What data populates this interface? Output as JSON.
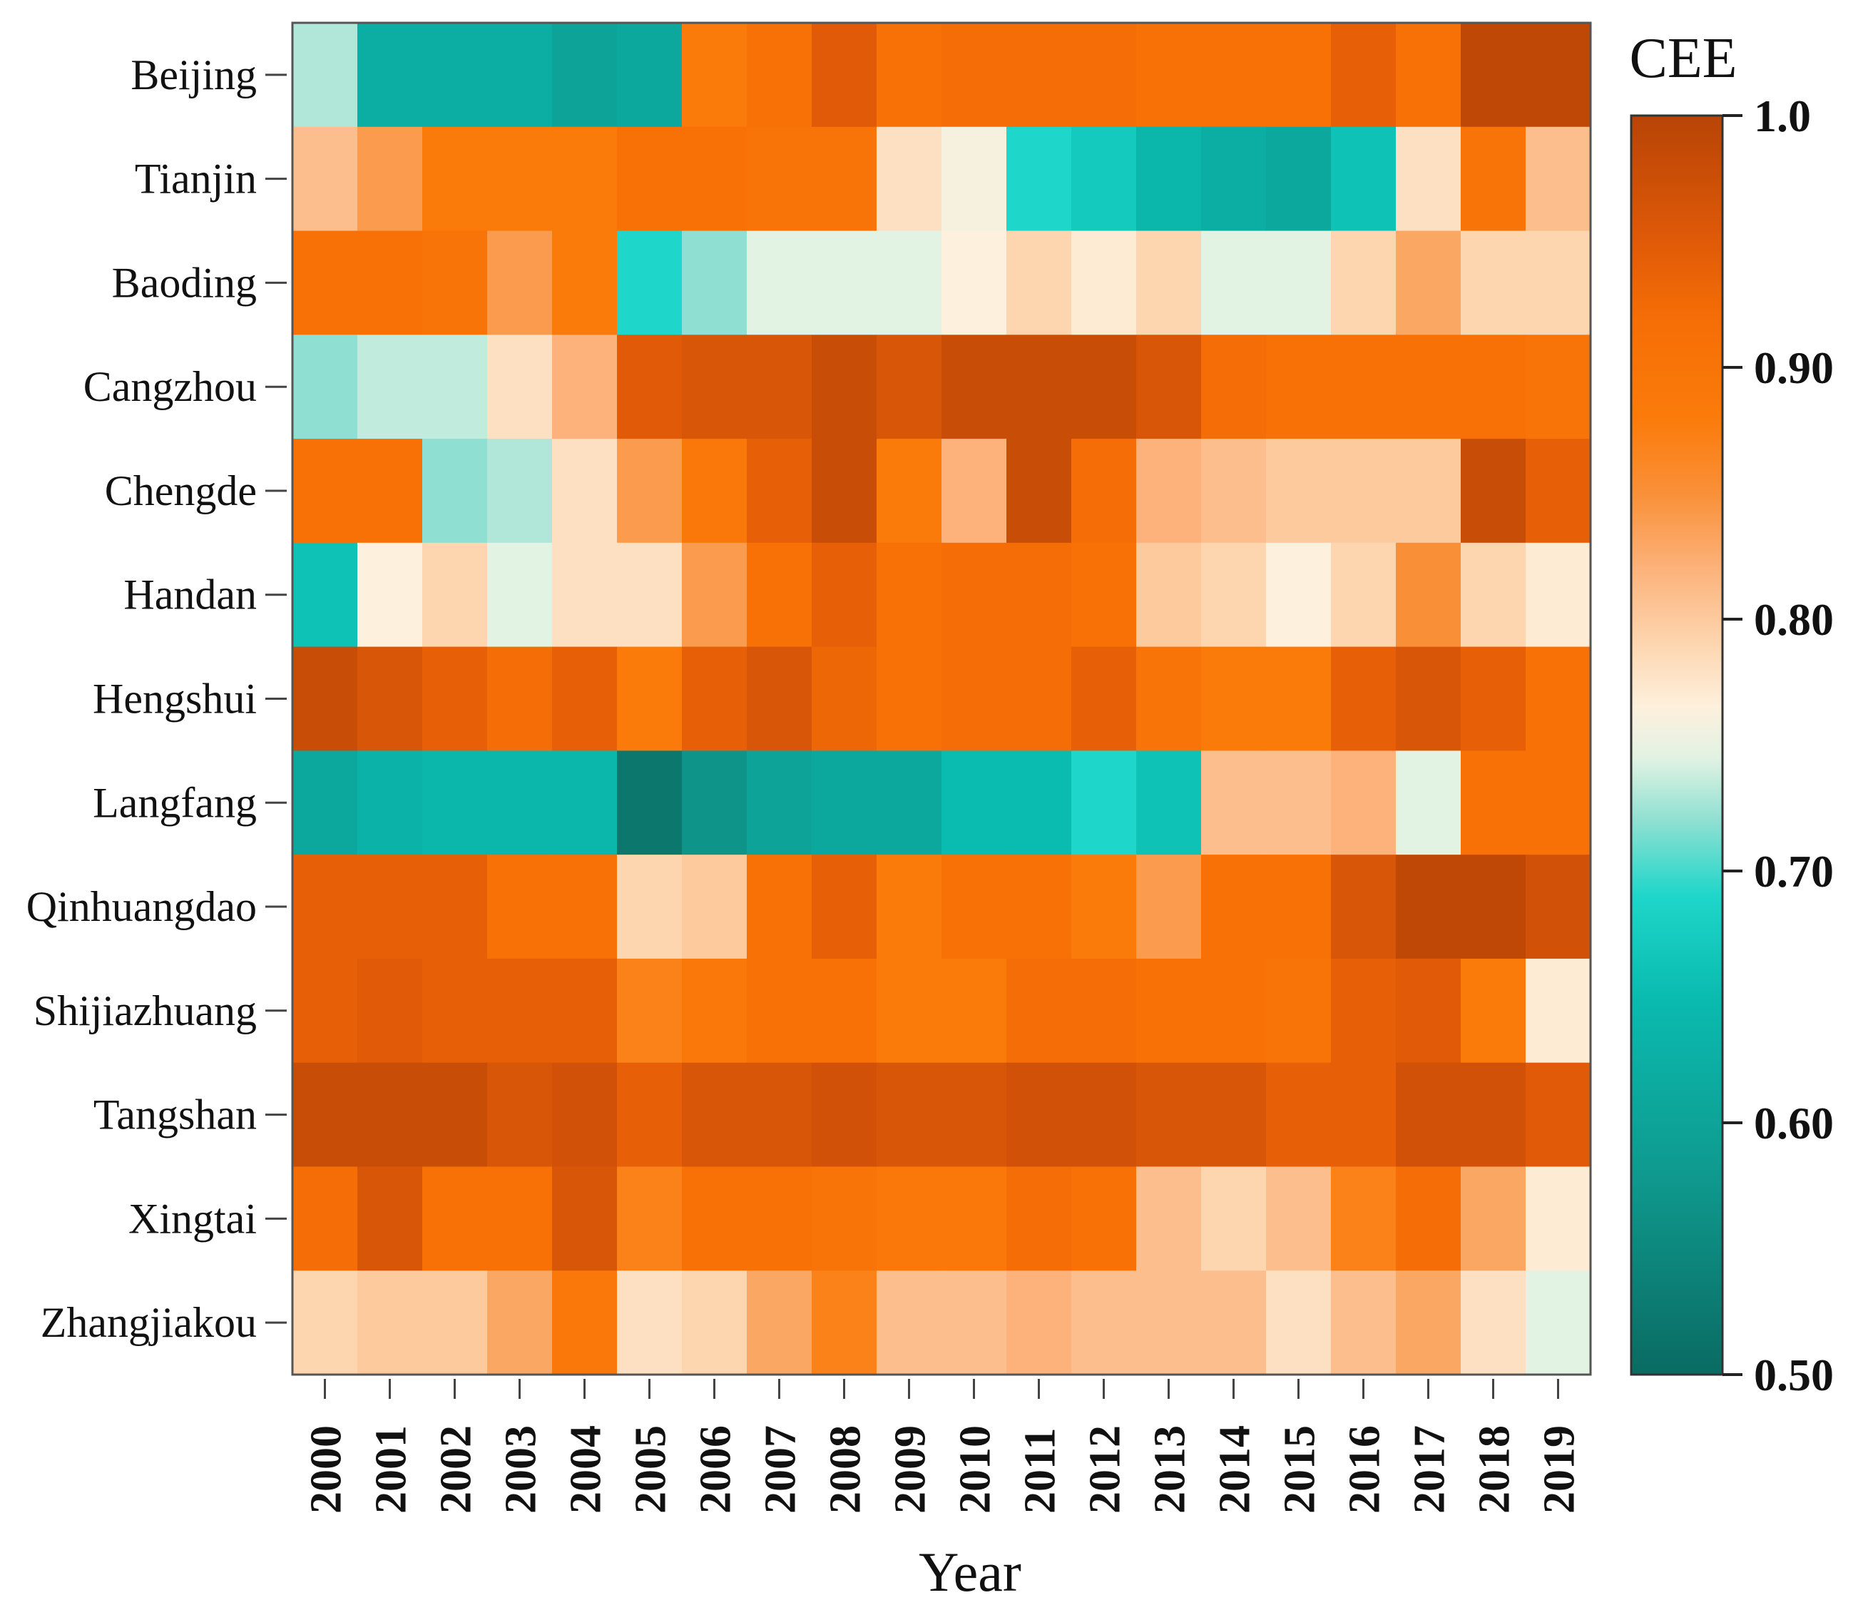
{
  "chart_data": {
    "type": "heatmap",
    "title": "",
    "xlabel": "Year",
    "ylabel": "",
    "legend_title": "CEE",
    "legend_position": "right",
    "grid": false,
    "x_categories": [
      "2000",
      "2001",
      "2002",
      "2003",
      "2004",
      "2005",
      "2006",
      "2007",
      "2008",
      "2009",
      "2010",
      "2011",
      "2012",
      "2013",
      "2014",
      "2015",
      "2016",
      "2017",
      "2018",
      "2019"
    ],
    "y_categories": [
      "Beijing",
      "Tianjin",
      "Baoding",
      "Cangzhou",
      "Chengde",
      "Handan",
      "Hengshui",
      "Langfang",
      "Qinhuangdao",
      "Shijiazhuang",
      "Tangshan",
      "Xingtai",
      "Zhangjiakou"
    ],
    "value_range": [
      0.5,
      1.0
    ],
    "colorbar_ticks": [
      {
        "value": 1.0,
        "label": "1.0"
      },
      {
        "value": 0.9,
        "label": "0.90"
      },
      {
        "value": 0.8,
        "label": "0.80"
      },
      {
        "value": 0.7,
        "label": "0.70"
      },
      {
        "value": 0.6,
        "label": "0.60"
      },
      {
        "value": 0.5,
        "label": "0.50"
      }
    ],
    "colorscale": [
      {
        "value": 0.5,
        "color": "#0a6b62"
      },
      {
        "value": 0.58,
        "color": "#0f9a8f"
      },
      {
        "value": 0.65,
        "color": "#0abbb0"
      },
      {
        "value": 0.69,
        "color": "#1ed6c9"
      },
      {
        "value": 0.72,
        "color": "#8fe0d2"
      },
      {
        "value": 0.745,
        "color": "#e2f2e3"
      },
      {
        "value": 0.765,
        "color": "#fdf0dd"
      },
      {
        "value": 0.79,
        "color": "#fdd6b0"
      },
      {
        "value": 0.82,
        "color": "#fcb27a"
      },
      {
        "value": 0.85,
        "color": "#f99038"
      },
      {
        "value": 0.88,
        "color": "#fb7b0a"
      },
      {
        "value": 0.92,
        "color": "#f56d06"
      },
      {
        "value": 0.95,
        "color": "#e05a08"
      },
      {
        "value": 1.0,
        "color": "#b84406"
      }
    ],
    "values": [
      [
        0.73,
        0.62,
        0.62,
        0.62,
        0.6,
        0.61,
        0.88,
        0.91,
        0.95,
        0.91,
        0.92,
        0.92,
        0.92,
        0.91,
        0.91,
        0.91,
        0.94,
        0.91,
        0.99,
        0.99
      ],
      [
        0.81,
        0.84,
        0.88,
        0.88,
        0.88,
        0.91,
        0.91,
        0.9,
        0.9,
        0.78,
        0.76,
        0.69,
        0.67,
        0.64,
        0.62,
        0.61,
        0.66,
        0.78,
        0.9,
        0.81
      ],
      [
        0.91,
        0.91,
        0.9,
        0.84,
        0.88,
        0.69,
        0.72,
        0.745,
        0.745,
        0.745,
        0.765,
        0.79,
        0.77,
        0.79,
        0.745,
        0.745,
        0.79,
        0.83,
        0.79,
        0.79
      ],
      [
        0.72,
        0.735,
        0.735,
        0.78,
        0.82,
        0.95,
        0.96,
        0.96,
        0.98,
        0.96,
        0.98,
        0.98,
        0.98,
        0.96,
        0.92,
        0.91,
        0.91,
        0.91,
        0.91,
        0.9
      ],
      [
        0.91,
        0.91,
        0.72,
        0.73,
        0.78,
        0.84,
        0.89,
        0.94,
        0.98,
        0.88,
        0.82,
        0.98,
        0.92,
        0.82,
        0.81,
        0.8,
        0.8,
        0.8,
        0.98,
        0.94
      ],
      [
        0.66,
        0.765,
        0.79,
        0.745,
        0.78,
        0.78,
        0.84,
        0.91,
        0.94,
        0.91,
        0.92,
        0.92,
        0.91,
        0.8,
        0.79,
        0.765,
        0.79,
        0.85,
        0.79,
        0.77
      ],
      [
        0.98,
        0.96,
        0.94,
        0.92,
        0.94,
        0.88,
        0.94,
        0.96,
        0.93,
        0.91,
        0.92,
        0.92,
        0.94,
        0.9,
        0.88,
        0.88,
        0.94,
        0.96,
        0.94,
        0.91
      ],
      [
        0.61,
        0.63,
        0.64,
        0.64,
        0.64,
        0.52,
        0.57,
        0.6,
        0.61,
        0.61,
        0.65,
        0.65,
        0.69,
        0.66,
        0.81,
        0.81,
        0.82,
        0.745,
        0.91,
        0.91
      ],
      [
        0.94,
        0.94,
        0.94,
        0.91,
        0.91,
        0.79,
        0.8,
        0.91,
        0.94,
        0.88,
        0.91,
        0.91,
        0.88,
        0.84,
        0.91,
        0.91,
        0.96,
        0.99,
        0.99,
        0.97
      ],
      [
        0.94,
        0.95,
        0.94,
        0.94,
        0.94,
        0.87,
        0.89,
        0.91,
        0.91,
        0.88,
        0.88,
        0.92,
        0.92,
        0.91,
        0.91,
        0.9,
        0.94,
        0.95,
        0.88,
        0.77
      ],
      [
        0.98,
        0.98,
        0.98,
        0.96,
        0.97,
        0.94,
        0.96,
        0.96,
        0.97,
        0.96,
        0.96,
        0.97,
        0.97,
        0.96,
        0.96,
        0.94,
        0.94,
        0.97,
        0.97,
        0.95
      ],
      [
        0.92,
        0.96,
        0.91,
        0.91,
        0.96,
        0.87,
        0.91,
        0.91,
        0.9,
        0.89,
        0.89,
        0.92,
        0.91,
        0.81,
        0.79,
        0.81,
        0.87,
        0.92,
        0.83,
        0.77
      ],
      [
        0.79,
        0.8,
        0.8,
        0.83,
        0.89,
        0.78,
        0.79,
        0.83,
        0.87,
        0.81,
        0.81,
        0.82,
        0.81,
        0.81,
        0.81,
        0.78,
        0.81,
        0.83,
        0.78,
        0.745
      ]
    ]
  }
}
